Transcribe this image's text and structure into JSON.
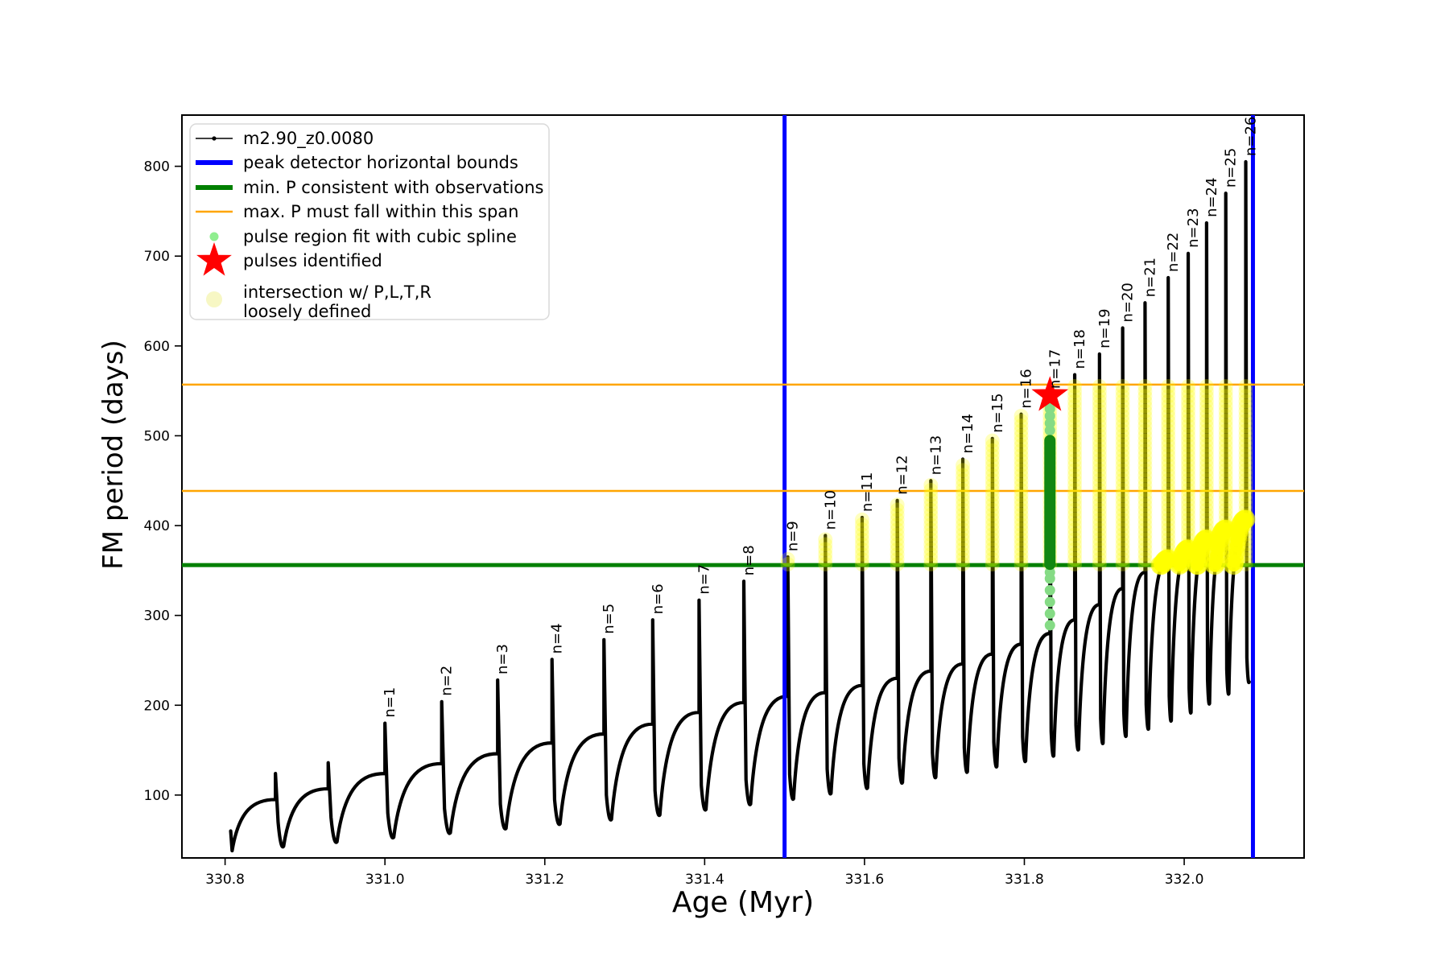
{
  "chart_data": {
    "type": "line",
    "title": "",
    "xlabel": "Age (Myr)",
    "ylabel": "FM period (days)",
    "xlim": [
      330.746,
      332.15
    ],
    "ylim": [
      30,
      857
    ],
    "grid": false,
    "xticks": [
      {
        "v": 330.8,
        "label": "330.8"
      },
      {
        "v": 331.0,
        "label": "331.0"
      },
      {
        "v": 331.2,
        "label": "331.2"
      },
      {
        "v": 331.4,
        "label": "331.4"
      },
      {
        "v": 331.6,
        "label": "331.6"
      },
      {
        "v": 331.8,
        "label": "331.8"
      },
      {
        "v": 332.0,
        "label": "332.0"
      }
    ],
    "yticks": [
      {
        "v": 100,
        "label": "100"
      },
      {
        "v": 200,
        "label": "200"
      },
      {
        "v": 300,
        "label": "300"
      },
      {
        "v": 400,
        "label": "400"
      },
      {
        "v": 500,
        "label": "500"
      },
      {
        "v": 600,
        "label": "600"
      },
      {
        "v": 700,
        "label": "700"
      },
      {
        "v": 800,
        "label": "800"
      }
    ],
    "series_label": "m2.90_z0.0080",
    "colors": {
      "curve": "#000000",
      "peak_bounds": "#0000ff",
      "min_P": "#008000",
      "max_P_span": "#ffa500",
      "spline_dots": "#85db85",
      "spline_core": "#128712",
      "star": "#ff0000",
      "intersection": "#ffff00",
      "legend_intersection_dot": "#f7f7c4"
    },
    "peak_detector_bounds_x": [
      331.5,
      332.086
    ],
    "min_P_consistent_y": 356,
    "max_P_span_y": [
      438.6,
      557
    ],
    "curve_start": {
      "age": 330.807,
      "value": 60,
      "first_dip": 38
    },
    "curve_end": {
      "age": 332.081,
      "value": 225
    },
    "pre_pulses": [
      {
        "age": 330.863,
        "peak": 124,
        "shoulder": 95,
        "dip_after": 42
      },
      {
        "age": 330.929,
        "peak": 136,
        "shoulder": 107,
        "dip_after": 47
      }
    ],
    "pulses": [
      {
        "n": 1,
        "age": 331.0,
        "peak": 180,
        "shoulder": 124,
        "dip_after": 52
      },
      {
        "n": 2,
        "age": 331.071,
        "peak": 204,
        "shoulder": 135,
        "dip_after": 57
      },
      {
        "n": 3,
        "age": 331.141,
        "peak": 228,
        "shoulder": 146,
        "dip_after": 62
      },
      {
        "n": 4,
        "age": 331.209,
        "peak": 251,
        "shoulder": 158,
        "dip_after": 67
      },
      {
        "n": 5,
        "age": 331.274,
        "peak": 273,
        "shoulder": 168,
        "dip_after": 72
      },
      {
        "n": 6,
        "age": 331.335,
        "peak": 295,
        "shoulder": 179,
        "dip_after": 77
      },
      {
        "n": 7,
        "age": 331.393,
        "peak": 317,
        "shoulder": 192,
        "dip_after": 83
      },
      {
        "n": 8,
        "age": 331.449,
        "peak": 338,
        "shoulder": 203,
        "dip_after": 89
      },
      {
        "n": 9,
        "age": 331.504,
        "peak": 365,
        "shoulder": 210,
        "dip_after": 95
      },
      {
        "n": 10,
        "age": 331.551,
        "peak": 389,
        "shoulder": 214,
        "dip_after": 101
      },
      {
        "n": 11,
        "age": 331.597,
        "peak": 409,
        "shoulder": 222,
        "dip_after": 107
      },
      {
        "n": 12,
        "age": 331.641,
        "peak": 428,
        "shoulder": 230,
        "dip_after": 113
      },
      {
        "n": 13,
        "age": 331.683,
        "peak": 450,
        "shoulder": 238,
        "dip_after": 119
      },
      {
        "n": 14,
        "age": 331.723,
        "peak": 474,
        "shoulder": 246,
        "dip_after": 125
      },
      {
        "n": 15,
        "age": 331.76,
        "peak": 497,
        "shoulder": 257,
        "dip_after": 131
      },
      {
        "n": 16,
        "age": 331.796,
        "peak": 524,
        "shoulder": 268,
        "dip_after": 137
      },
      {
        "n": 17,
        "age": 331.832,
        "peak": 546,
        "shoulder": 280,
        "dip_after": 143
      },
      {
        "n": 18,
        "age": 331.863,
        "peak": 568,
        "shoulder": 295,
        "dip_after": 150
      },
      {
        "n": 19,
        "age": 331.894,
        "peak": 591,
        "shoulder": 312,
        "dip_after": 157
      },
      {
        "n": 20,
        "age": 331.923,
        "peak": 620,
        "shoulder": 330,
        "dip_after": 165
      },
      {
        "n": 21,
        "age": 331.951,
        "peak": 648,
        "shoulder": 348,
        "dip_after": 173
      },
      {
        "n": 22,
        "age": 331.98,
        "peak": 676,
        "shoulder": 363,
        "dip_after": 182
      },
      {
        "n": 23,
        "age": 332.005,
        "peak": 703,
        "shoulder": 374,
        "dip_after": 191
      },
      {
        "n": 24,
        "age": 332.028,
        "peak": 737,
        "shoulder": 385,
        "dip_after": 201
      },
      {
        "n": 25,
        "age": 332.052,
        "peak": 770,
        "shoulder": 396,
        "dip_after": 212
      },
      {
        "n": 26,
        "age": 332.077,
        "peak": 805,
        "shoulder": 407,
        "dip_after": 225
      }
    ],
    "yellow_intersections": {
      "column_pulses_from_n": 9,
      "column_value_min": 356,
      "column_value_cap": 556,
      "loose_blob_cycles_ending_at_n": [
        22,
        23,
        24,
        25,
        26
      ],
      "loose_blob_value_threshold": 347
    },
    "spline_column": {
      "age": 331.832,
      "dense_range": [
        356,
        501
      ],
      "sparse_below": [
        289,
        302,
        315,
        328,
        341,
        348
      ],
      "sparse_above": [
        506,
        514,
        522,
        530,
        538,
        546
      ]
    },
    "star": {
      "age": 331.832,
      "period": 545
    }
  },
  "legend": {
    "entries": [
      {
        "label": "m2.90_z0.0080",
        "label2": "",
        "handle": "line-dot",
        "color": "#000000"
      },
      {
        "label": "peak detector horizontal bounds",
        "label2": "",
        "handle": "thick-line",
        "color": "#0000ff"
      },
      {
        "label": "min. P consistent with observations",
        "label2": "",
        "handle": "thick-line",
        "color": "#008000"
      },
      {
        "label": "max. P must fall within this span",
        "label2": "",
        "handle": "line",
        "color": "#ffa500"
      },
      {
        "label": "pulse region fit with cubic spline",
        "label2": "",
        "handle": "dot-small",
        "color": "#90ee90"
      },
      {
        "label": "pulses identified",
        "label2": "",
        "handle": "star",
        "color": "#ff0000"
      },
      {
        "label": "intersection w/ P,L,T,R",
        "label2": "loosely defined",
        "handle": "dot-large",
        "color": "#f7f7c4"
      }
    ]
  }
}
